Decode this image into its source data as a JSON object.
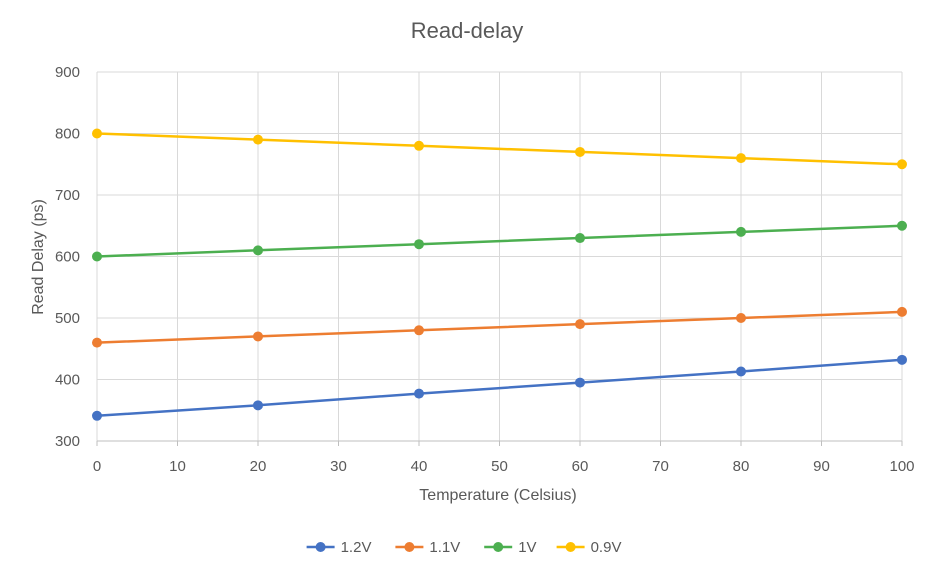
{
  "chart_data": {
    "type": "line",
    "title": "Read-delay",
    "xlabel": "Temperature (Celsius)",
    "ylabel": "Read Delay (ps)",
    "xlim": [
      0,
      100
    ],
    "ylim": [
      300,
      900
    ],
    "x_ticks": [
      0,
      10,
      20,
      30,
      40,
      50,
      60,
      70,
      80,
      90,
      100
    ],
    "y_ticks": [
      300,
      400,
      500,
      600,
      700,
      800,
      900
    ],
    "grid": true,
    "legend_position": "bottom",
    "x": [
      0,
      20,
      40,
      60,
      80,
      100
    ],
    "series": [
      {
        "name": "1.2V",
        "color": "#4472C4",
        "values": [
          341,
          358,
          377,
          395,
          413,
          432
        ]
      },
      {
        "name": "1.1V",
        "color": "#ED7D31",
        "values": [
          460,
          470,
          480,
          490,
          500,
          510
        ]
      },
      {
        "name": "1V",
        "color": "#4CAF50",
        "values": [
          600,
          610,
          620,
          630,
          640,
          650
        ]
      },
      {
        "name": "0.9V",
        "color": "#FFC000",
        "values": [
          800,
          790,
          780,
          770,
          760,
          750
        ]
      }
    ]
  }
}
